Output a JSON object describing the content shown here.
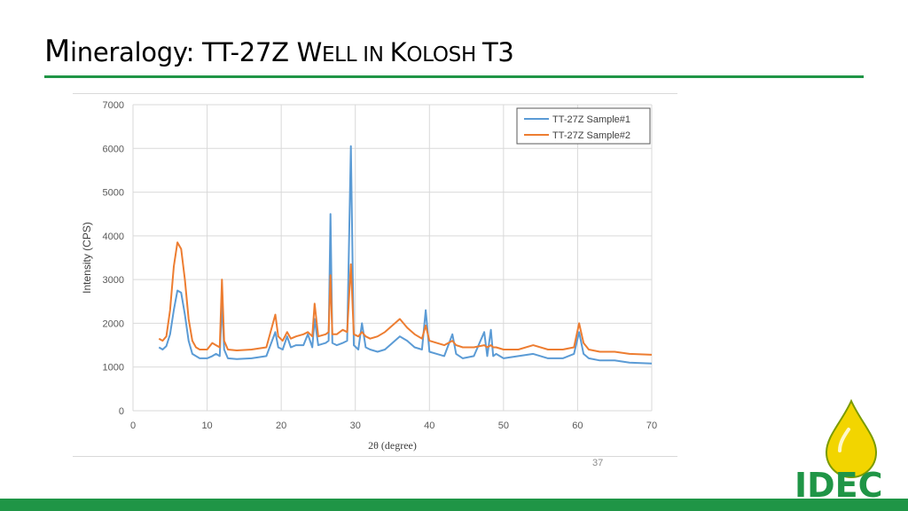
{
  "slide": {
    "title_parts": [
      "M",
      "ineralogy: TT-27Z W",
      "ELL IN ",
      "K",
      "OLOSH ",
      "T3"
    ],
    "page_number": "37",
    "accent_color": "#1f9546"
  },
  "logo": {
    "text": "IDEC",
    "colors": {
      "drop": "#f2d500",
      "drop_outline": "#7a9b00",
      "text": "#1f9546"
    }
  },
  "chart_data": {
    "type": "line",
    "title": "",
    "xlabel": "2θ (degree)",
    "ylabel": "Intensity (CPS)",
    "xlim": [
      0,
      70
    ],
    "ylim": [
      0,
      7000
    ],
    "xticks": [
      0,
      10,
      20,
      30,
      40,
      50,
      60,
      70
    ],
    "yticks": [
      0,
      1000,
      2000,
      3000,
      4000,
      5000,
      6000,
      7000
    ],
    "grid": true,
    "legend_position": "top-right",
    "series": [
      {
        "name": "TT-27Z Sample#1",
        "color": "#5b9bd5",
        "x": [
          3.5,
          4.0,
          4.5,
          5.0,
          5.5,
          6.0,
          6.5,
          7.0,
          7.5,
          8.0,
          8.5,
          9.0,
          10.0,
          10.7,
          11.2,
          11.7,
          12.0,
          12.3,
          12.8,
          14.0,
          16.0,
          18.0,
          19.2,
          19.6,
          20.2,
          20.8,
          21.3,
          22.0,
          23.0,
          23.6,
          24.2,
          24.5,
          25.0,
          26.0,
          26.4,
          26.65,
          26.9,
          27.5,
          28.3,
          28.9,
          29.4,
          29.8,
          30.4,
          30.9,
          31.4,
          32.0,
          33.0,
          34.0,
          35.0,
          36.0,
          37.0,
          38.0,
          39.0,
          39.5,
          40.0,
          41.0,
          42.0,
          43.1,
          43.6,
          44.5,
          46.0,
          47.4,
          47.8,
          48.3,
          48.6,
          49.0,
          50.0,
          52.0,
          54.0,
          56.0,
          58.0,
          59.5,
          60.2,
          60.8,
          61.5,
          63.0,
          65.0,
          67.0,
          70.0
        ],
        "values": [
          1450,
          1400,
          1480,
          1750,
          2300,
          2750,
          2700,
          2200,
          1600,
          1300,
          1250,
          1200,
          1200,
          1250,
          1300,
          1250,
          2450,
          1400,
          1200,
          1180,
          1200,
          1250,
          1800,
          1450,
          1400,
          1700,
          1450,
          1500,
          1500,
          1750,
          1450,
          2100,
          1500,
          1550,
          1600,
          4500,
          1550,
          1500,
          1550,
          1600,
          6050,
          1500,
          1400,
          2000,
          1450,
          1400,
          1350,
          1400,
          1550,
          1700,
          1600,
          1450,
          1400,
          2300,
          1350,
          1300,
          1250,
          1750,
          1300,
          1200,
          1250,
          1800,
          1250,
          1850,
          1250,
          1300,
          1200,
          1250,
          1300,
          1200,
          1200,
          1300,
          1800,
          1300,
          1200,
          1150,
          1150,
          1100,
          1080
        ]
      },
      {
        "name": "TT-27Z Sample#2",
        "color": "#ed7d31",
        "x": [
          3.5,
          4.0,
          4.5,
          5.0,
          5.5,
          6.0,
          6.5,
          7.0,
          7.5,
          8.0,
          8.5,
          9.0,
          10.0,
          10.7,
          11.2,
          11.7,
          12.0,
          12.3,
          12.8,
          14.0,
          16.0,
          18.0,
          19.2,
          19.6,
          20.2,
          20.8,
          21.3,
          22.0,
          23.0,
          23.6,
          24.2,
          24.5,
          25.0,
          26.0,
          26.4,
          26.65,
          26.9,
          27.5,
          28.3,
          28.9,
          29.4,
          29.8,
          30.4,
          30.9,
          31.4,
          32.0,
          33.0,
          34.0,
          35.0,
          36.0,
          37.0,
          38.0,
          39.0,
          39.5,
          40.0,
          41.0,
          42.0,
          43.1,
          43.6,
          44.5,
          46.0,
          47.4,
          47.8,
          48.3,
          48.6,
          49.0,
          50.0,
          52.0,
          54.0,
          56.0,
          58.0,
          59.5,
          60.2,
          60.8,
          61.5,
          63.0,
          65.0,
          67.0,
          70.0
        ],
        "values": [
          1650,
          1600,
          1700,
          2300,
          3300,
          3850,
          3700,
          3000,
          2100,
          1600,
          1450,
          1400,
          1400,
          1550,
          1500,
          1450,
          3000,
          1600,
          1400,
          1380,
          1400,
          1450,
          2200,
          1700,
          1600,
          1800,
          1650,
          1700,
          1750,
          1800,
          1700,
          2450,
          1700,
          1750,
          1800,
          3100,
          1750,
          1750,
          1850,
          1800,
          3350,
          1750,
          1700,
          1800,
          1700,
          1650,
          1700,
          1800,
          1950,
          2100,
          1900,
          1750,
          1650,
          1950,
          1600,
          1550,
          1500,
          1600,
          1500,
          1450,
          1450,
          1500,
          1450,
          1500,
          1450,
          1450,
          1400,
          1400,
          1500,
          1400,
          1400,
          1450,
          2000,
          1550,
          1400,
          1350,
          1350,
          1300,
          1280
        ]
      }
    ]
  }
}
